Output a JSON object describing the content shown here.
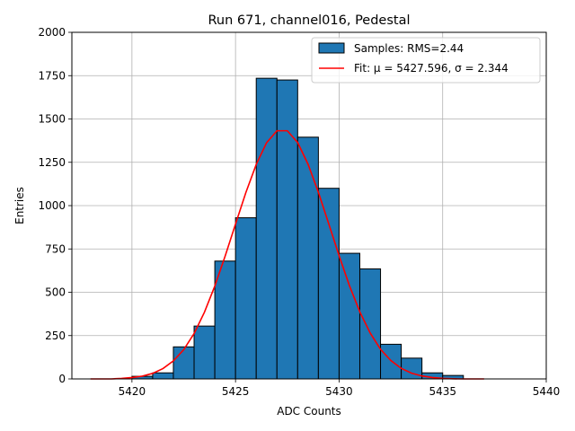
{
  "chart_data": {
    "type": "bar",
    "title": "Run 671, channel016, Pedestal",
    "xlabel": "ADC Counts",
    "ylabel": "Entries",
    "xlim": [
      5417.1,
      5440.0
    ],
    "ylim": [
      0,
      2000
    ],
    "x_ticks": [
      5420,
      5425,
      5430,
      5435,
      5440
    ],
    "y_ticks": [
      0,
      250,
      500,
      750,
      1000,
      1250,
      1500,
      1750,
      2000
    ],
    "grid": true,
    "legend_position": "top-right",
    "bin_width": 1,
    "bins": [
      {
        "left": 5420,
        "value": 15
      },
      {
        "left": 5421,
        "value": 35
      },
      {
        "left": 5422,
        "value": 185
      },
      {
        "left": 5423,
        "value": 305
      },
      {
        "left": 5424,
        "value": 680
      },
      {
        "left": 5425,
        "value": 930
      },
      {
        "left": 5426,
        "value": 1735
      },
      {
        "left": 5427,
        "value": 1725
      },
      {
        "left": 5428,
        "value": 1395
      },
      {
        "left": 5429,
        "value": 1100
      },
      {
        "left": 5430,
        "value": 725
      },
      {
        "left": 5431,
        "value": 635
      },
      {
        "left": 5432,
        "value": 200
      },
      {
        "left": 5433,
        "value": 120
      },
      {
        "left": 5434,
        "value": 35
      },
      {
        "left": 5435,
        "value": 20
      }
    ],
    "series": [
      {
        "name": "Samples: RMS=2.44",
        "kind": "histogram",
        "color": "#1f77b4",
        "edge_color": "#000000"
      },
      {
        "name": "Fit: μ = 5427.596, σ = 2.344",
        "kind": "line",
        "color": "#ff0000",
        "x": [
          5418.0,
          5418.5,
          5419.0,
          5419.5,
          5420.0,
          5420.5,
          5421.0,
          5421.5,
          5422.0,
          5422.5,
          5423.0,
          5423.5,
          5424.0,
          5424.5,
          5425.0,
          5425.5,
          5426.0,
          5426.5,
          5427.0,
          5427.5,
          5428.0,
          5428.5,
          5429.0,
          5429.5,
          5430.0,
          5430.5,
          5431.0,
          5431.5,
          5432.0,
          5432.5,
          5433.0,
          5433.5,
          5434.0,
          5434.5,
          5435.0,
          5435.5,
          5436.0,
          5436.5,
          5437.0
        ],
        "y": [
          0,
          0,
          0,
          3,
          8,
          16,
          32,
          60,
          104,
          169,
          262,
          385,
          536,
          709,
          894,
          1076,
          1238,
          1363,
          1432,
          1432,
          1364,
          1239,
          1077,
          895,
          711,
          538,
          387,
          265,
          171,
          106,
          61,
          33,
          17,
          8,
          3,
          1,
          0,
          0,
          0
        ]
      }
    ]
  }
}
